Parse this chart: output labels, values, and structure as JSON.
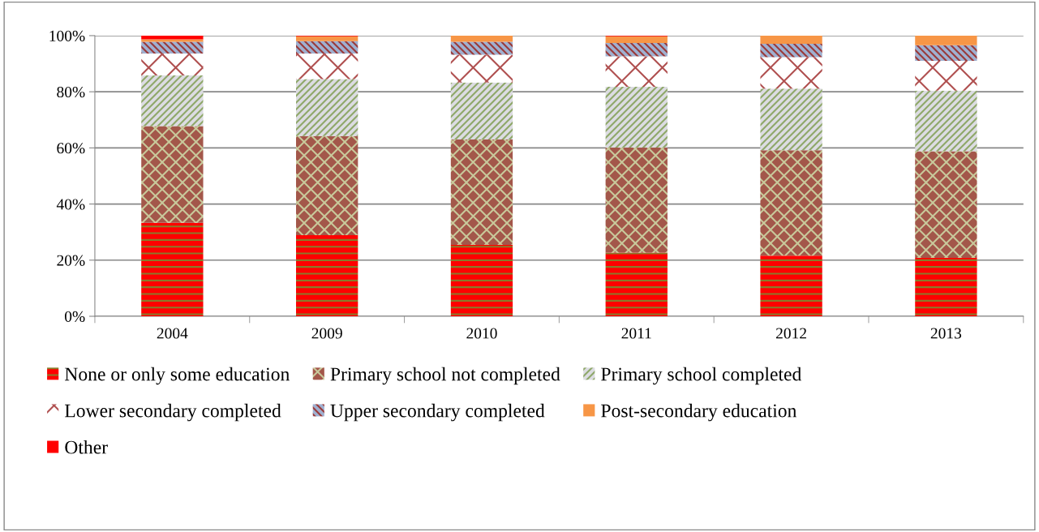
{
  "chart_data": {
    "type": "bar",
    "stacked": true,
    "categories": [
      "2004",
      "2009",
      "2010",
      "2011",
      "2012",
      "2013"
    ],
    "series": [
      {
        "name": "None or only some education",
        "color": "#ff0000",
        "values": [
          33.3,
          28.9,
          25.4,
          22.7,
          21.6,
          20.8
        ]
      },
      {
        "name": "Primary school not completed",
        "color": "#a3574a",
        "values": [
          34.5,
          35.3,
          37.6,
          37.4,
          37.6,
          38.0
        ]
      },
      {
        "name": "Primary school completed",
        "color": "#dcdce2",
        "values": [
          18.0,
          20.3,
          20.3,
          21.7,
          21.9,
          21.6
        ]
      },
      {
        "name": "Lower secondary completed",
        "color": "#ffffff",
        "values": [
          7.8,
          9.1,
          9.9,
          10.8,
          11.2,
          10.6
        ]
      },
      {
        "name": "Upper secondary completed",
        "color": "#9fb0d0",
        "values": [
          4.2,
          4.4,
          4.6,
          4.8,
          4.8,
          5.6
        ]
      },
      {
        "name": "Post-secondary education",
        "color": "#f79646",
        "values": [
          0.9,
          1.8,
          2.2,
          2.4,
          2.9,
          3.4
        ]
      },
      {
        "name": "Other",
        "color": "#ff0000",
        "values": [
          1.3,
          0.2,
          0.0,
          0.2,
          0.0,
          0.0
        ]
      }
    ],
    "ylim": [
      0,
      100
    ],
    "yticks": [
      {
        "value": 0,
        "label": "0%"
      },
      {
        "value": 20,
        "label": "20%"
      },
      {
        "value": 40,
        "label": "40%"
      },
      {
        "value": 60,
        "label": "60%"
      },
      {
        "value": 80,
        "label": "80%"
      },
      {
        "value": 100,
        "label": "100%"
      }
    ],
    "grid": "y",
    "legend": "bottom"
  }
}
